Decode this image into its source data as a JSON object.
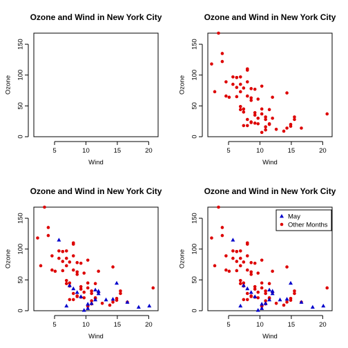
{
  "chart_data": [
    {
      "type": "scatter",
      "title": "Ozone and Wind in New York City",
      "xlabel": "Wind",
      "ylabel": "Ozone",
      "xlim": [
        1.7,
        21.5
      ],
      "ylim": [
        0,
        168
      ],
      "xticks": [
        "5",
        "10",
        "15",
        "20"
      ],
      "yticks": [
        "0",
        "50",
        "100",
        "150"
      ],
      "series": []
    },
    {
      "type": "scatter",
      "title": "Ozone and Wind in New York City",
      "xlabel": "Wind",
      "ylabel": "Ozone",
      "xlim": [
        1.7,
        21.5
      ],
      "ylim": [
        0,
        168
      ],
      "xticks": [
        "5",
        "10",
        "15",
        "20"
      ],
      "yticks": [
        "0",
        "50",
        "100",
        "150"
      ],
      "series": [
        {
          "marker": "circle",
          "color": "#dd0000",
          "points": [
            [
              2.3,
              118
            ],
            [
              2.8,
              73
            ],
            [
              3.4,
              168
            ],
            [
              4.0,
              135
            ],
            [
              4.0,
              122
            ],
            [
              4.6,
              89
            ],
            [
              4.6,
              66
            ],
            [
              5.1,
              64
            ],
            [
              5.7,
              85
            ],
            [
              5.7,
              97
            ],
            [
              6.3,
              96
            ],
            [
              6.3,
              80
            ],
            [
              6.3,
              96
            ],
            [
              6.3,
              65
            ],
            [
              6.9,
              73
            ],
            [
              6.9,
              97
            ],
            [
              6.9,
              49
            ],
            [
              6.9,
              44
            ],
            [
              6.9,
              85
            ],
            [
              7.4,
              79
            ],
            [
              7.4,
              45
            ],
            [
              7.4,
              40
            ],
            [
              7.4,
              18
            ],
            [
              8.0,
              110
            ],
            [
              8.0,
              28
            ],
            [
              8.0,
              18
            ],
            [
              8.0,
              89
            ],
            [
              8.0,
              66
            ],
            [
              8.0,
              108
            ],
            [
              8.6,
              78
            ],
            [
              8.6,
              59
            ],
            [
              8.6,
              23
            ],
            [
              8.6,
              63
            ],
            [
              8.6,
              24
            ],
            [
              9.2,
              39
            ],
            [
              9.2,
              77
            ],
            [
              9.2,
              22
            ],
            [
              9.2,
              35
            ],
            [
              9.7,
              30
            ],
            [
              9.7,
              61
            ],
            [
              9.7,
              21
            ],
            [
              10.3,
              7
            ],
            [
              10.3,
              45
            ],
            [
              10.3,
              82
            ],
            [
              10.3,
              37
            ],
            [
              10.9,
              11
            ],
            [
              10.9,
              28
            ],
            [
              10.9,
              32
            ],
            [
              10.9,
              16
            ],
            [
              11.5,
              20
            ],
            [
              11.5,
              21
            ],
            [
              11.5,
              44
            ],
            [
              12.0,
              30
            ],
            [
              12.0,
              64
            ],
            [
              12.6,
              12
            ],
            [
              13.8,
              9
            ],
            [
              14.3,
              71
            ],
            [
              14.3,
              14
            ],
            [
              14.9,
              17
            ],
            [
              14.9,
              20
            ],
            [
              15.5,
              32
            ],
            [
              15.5,
              28
            ],
            [
              16.6,
              14
            ],
            [
              20.7,
              37
            ]
          ]
        }
      ]
    },
    {
      "type": "scatter",
      "title": "Ozone and Wind in New York City",
      "xlabel": "Wind",
      "ylabel": "Ozone",
      "xlim": [
        1.7,
        21.5
      ],
      "ylim": [
        0,
        168
      ],
      "xticks": [
        "5",
        "10",
        "15",
        "20"
      ],
      "yticks": [
        "0",
        "50",
        "100",
        "150"
      ],
      "series": [
        {
          "marker": "circle",
          "color": "#dd0000",
          "points": [
            [
              2.3,
              118
            ],
            [
              2.8,
              73
            ],
            [
              3.4,
              168
            ],
            [
              4.0,
              135
            ],
            [
              4.0,
              122
            ],
            [
              4.6,
              89
            ],
            [
              4.6,
              66
            ],
            [
              5.1,
              64
            ],
            [
              5.7,
              85
            ],
            [
              5.7,
              97
            ],
            [
              6.3,
              96
            ],
            [
              6.3,
              80
            ],
            [
              6.3,
              96
            ],
            [
              6.3,
              65
            ],
            [
              6.9,
              73
            ],
            [
              6.9,
              97
            ],
            [
              6.9,
              49
            ],
            [
              6.9,
              44
            ],
            [
              6.9,
              85
            ],
            [
              7.4,
              79
            ],
            [
              7.4,
              45
            ],
            [
              7.4,
              40
            ],
            [
              7.4,
              18
            ],
            [
              8.0,
              110
            ],
            [
              8.0,
              28
            ],
            [
              8.0,
              18
            ],
            [
              8.0,
              89
            ],
            [
              8.0,
              66
            ],
            [
              8.0,
              108
            ],
            [
              8.6,
              78
            ],
            [
              8.6,
              59
            ],
            [
              8.6,
              23
            ],
            [
              8.6,
              63
            ],
            [
              8.6,
              24
            ],
            [
              9.2,
              39
            ],
            [
              9.2,
              77
            ],
            [
              9.2,
              22
            ],
            [
              9.2,
              35
            ],
            [
              9.7,
              30
            ],
            [
              9.7,
              61
            ],
            [
              9.7,
              21
            ],
            [
              10.3,
              7
            ],
            [
              10.3,
              45
            ],
            [
              10.3,
              82
            ],
            [
              10.3,
              37
            ],
            [
              10.9,
              11
            ],
            [
              10.9,
              28
            ],
            [
              10.9,
              32
            ],
            [
              10.9,
              16
            ],
            [
              11.5,
              20
            ],
            [
              11.5,
              21
            ],
            [
              11.5,
              44
            ],
            [
              12.0,
              30
            ],
            [
              12.0,
              64
            ],
            [
              12.6,
              12
            ],
            [
              13.8,
              9
            ],
            [
              14.3,
              71
            ],
            [
              14.3,
              14
            ],
            [
              14.9,
              17
            ],
            [
              14.9,
              20
            ],
            [
              15.5,
              32
            ],
            [
              15.5,
              28
            ],
            [
              16.6,
              14
            ],
            [
              20.7,
              37
            ]
          ]
        },
        {
          "marker": "triangle",
          "color": "#0000cc",
          "points": [
            [
              5.7,
              115
            ],
            [
              6.9,
              8
            ],
            [
              7.4,
              41
            ],
            [
              8.0,
              36
            ],
            [
              8.6,
              30
            ],
            [
              9.2,
              23
            ],
            [
              9.7,
              1
            ],
            [
              10.3,
              11
            ],
            [
              10.3,
              4
            ],
            [
              10.9,
              12
            ],
            [
              11.5,
              18
            ],
            [
              11.5,
              34
            ],
            [
              12.0,
              32
            ],
            [
              12.0,
              28
            ],
            [
              13.2,
              18
            ],
            [
              14.3,
              19
            ],
            [
              14.9,
              45
            ],
            [
              16.6,
              14
            ],
            [
              18.4,
              6
            ],
            [
              20.1,
              8
            ]
          ]
        }
      ]
    },
    {
      "type": "scatter",
      "title": "Ozone and Wind in New York City",
      "xlabel": "Wind",
      "ylabel": "Ozone",
      "xlim": [
        1.7,
        21.5
      ],
      "ylim": [
        0,
        168
      ],
      "xticks": [
        "5",
        "10",
        "15",
        "20"
      ],
      "yticks": [
        "0",
        "50",
        "100",
        "150"
      ],
      "legend": {
        "placement": "top-right",
        "entries": [
          "May",
          "Other Months"
        ]
      },
      "series": [
        {
          "name": "Other Months",
          "marker": "circle",
          "color": "#dd0000",
          "points": [
            [
              2.3,
              118
            ],
            [
              2.8,
              73
            ],
            [
              3.4,
              168
            ],
            [
              4.0,
              135
            ],
            [
              4.0,
              122
            ],
            [
              4.6,
              89
            ],
            [
              4.6,
              66
            ],
            [
              5.1,
              64
            ],
            [
              5.7,
              85
            ],
            [
              5.7,
              97
            ],
            [
              6.3,
              96
            ],
            [
              6.3,
              80
            ],
            [
              6.3,
              96
            ],
            [
              6.3,
              65
            ],
            [
              6.9,
              73
            ],
            [
              6.9,
              97
            ],
            [
              6.9,
              49
            ],
            [
              6.9,
              44
            ],
            [
              6.9,
              85
            ],
            [
              7.4,
              79
            ],
            [
              7.4,
              45
            ],
            [
              7.4,
              40
            ],
            [
              7.4,
              18
            ],
            [
              8.0,
              110
            ],
            [
              8.0,
              28
            ],
            [
              8.0,
              18
            ],
            [
              8.0,
              89
            ],
            [
              8.0,
              66
            ],
            [
              8.0,
              108
            ],
            [
              8.6,
              78
            ],
            [
              8.6,
              59
            ],
            [
              8.6,
              23
            ],
            [
              8.6,
              63
            ],
            [
              8.6,
              24
            ],
            [
              9.2,
              39
            ],
            [
              9.2,
              77
            ],
            [
              9.2,
              22
            ],
            [
              9.2,
              35
            ],
            [
              9.7,
              30
            ],
            [
              9.7,
              61
            ],
            [
              9.7,
              21
            ],
            [
              10.3,
              7
            ],
            [
              10.3,
              45
            ],
            [
              10.3,
              82
            ],
            [
              10.3,
              37
            ],
            [
              10.9,
              11
            ],
            [
              10.9,
              28
            ],
            [
              10.9,
              32
            ],
            [
              10.9,
              16
            ],
            [
              11.5,
              20
            ],
            [
              11.5,
              21
            ],
            [
              11.5,
              44
            ],
            [
              12.0,
              30
            ],
            [
              12.0,
              64
            ],
            [
              12.6,
              12
            ],
            [
              13.8,
              9
            ],
            [
              14.3,
              71
            ],
            [
              14.3,
              14
            ],
            [
              14.9,
              17
            ],
            [
              14.9,
              20
            ],
            [
              15.5,
              32
            ],
            [
              15.5,
              28
            ],
            [
              16.6,
              14
            ],
            [
              20.7,
              37
            ]
          ]
        },
        {
          "name": "May",
          "marker": "triangle",
          "color": "#0000cc",
          "points": [
            [
              5.7,
              115
            ],
            [
              6.9,
              8
            ],
            [
              7.4,
              41
            ],
            [
              8.0,
              36
            ],
            [
              8.6,
              30
            ],
            [
              9.2,
              23
            ],
            [
              9.7,
              1
            ],
            [
              10.3,
              11
            ],
            [
              10.3,
              4
            ],
            [
              10.9,
              12
            ],
            [
              11.5,
              18
            ],
            [
              11.5,
              34
            ],
            [
              12.0,
              32
            ],
            [
              12.0,
              28
            ],
            [
              13.2,
              18
            ],
            [
              14.3,
              19
            ],
            [
              14.9,
              45
            ],
            [
              16.6,
              14
            ],
            [
              18.4,
              6
            ],
            [
              20.1,
              8
            ]
          ]
        }
      ]
    }
  ]
}
